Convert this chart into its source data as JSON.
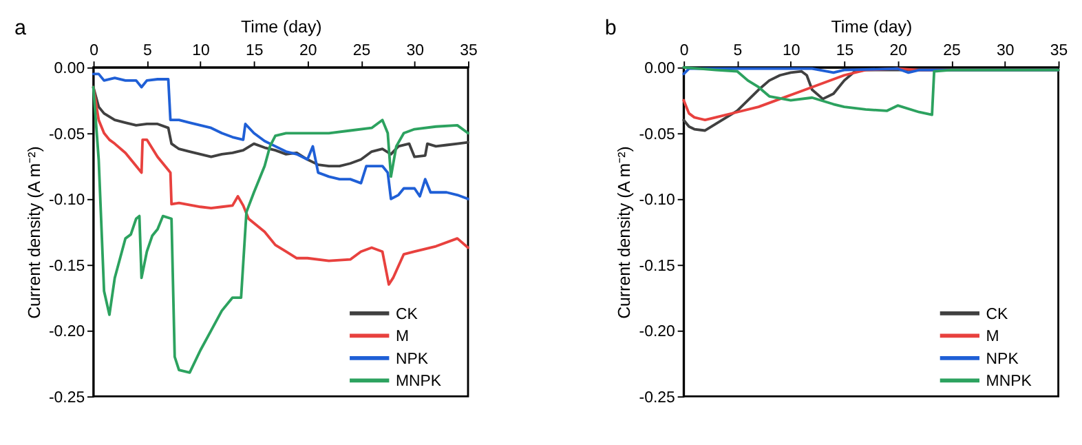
{
  "chart_data": [
    {
      "type": "line",
      "xlabel": "Time (day)",
      "ylabel": "Current density (A m⁻²)",
      "annotations": [
        "a"
      ],
      "xlim": [
        0,
        35
      ],
      "xticks": [
        0,
        5,
        10,
        15,
        20,
        25,
        30,
        35
      ],
      "ylim": [
        -0.25,
        0
      ],
      "yticks": [
        {
          "value": -0.25,
          "label": "-0.25"
        },
        {
          "value": -0.2,
          "label": "-0.20"
        },
        {
          "value": -0.15,
          "label": "-0.15"
        },
        {
          "value": -0.1,
          "label": "-0.10"
        },
        {
          "value": -0.05,
          "label": "-0.05"
        },
        {
          "value": 0,
          "label": "0.00"
        }
      ],
      "grid": false,
      "legend": "bottom right",
      "marker": "none",
      "line_style": "solid",
      "series": [
        {
          "name": "CK",
          "color": "#404040",
          "x": [
            0,
            0.5,
            1,
            2,
            3,
            4,
            5,
            6,
            7,
            7.3,
            8,
            9,
            10,
            11,
            12,
            13,
            14,
            15,
            16,
            17,
            18,
            19,
            20,
            21,
            22,
            23,
            24,
            25,
            26,
            27,
            27.8,
            28.5,
            29.5,
            30,
            31,
            31.2,
            32,
            33,
            34,
            35
          ],
          "values": [
            -0.015,
            -0.03,
            -0.035,
            -0.04,
            -0.042,
            -0.044,
            -0.043,
            -0.043,
            -0.046,
            -0.058,
            -0.062,
            -0.064,
            -0.066,
            -0.068,
            -0.066,
            -0.065,
            -0.063,
            -0.058,
            -0.061,
            -0.063,
            -0.066,
            -0.065,
            -0.07,
            -0.074,
            -0.075,
            -0.075,
            -0.073,
            -0.07,
            -0.064,
            -0.062,
            -0.066,
            -0.06,
            -0.058,
            -0.068,
            -0.067,
            -0.058,
            -0.06,
            -0.059,
            -0.058,
            -0.057
          ]
        },
        {
          "name": "M",
          "color": "#e8413e",
          "x": [
            0,
            0.5,
            1,
            1.5,
            2,
            3,
            4,
            4.5,
            4.6,
            5,
            6,
            7,
            7.2,
            7.3,
            8,
            10,
            11,
            12,
            13,
            13.5,
            14,
            14.5,
            16,
            17,
            18,
            19,
            20,
            22,
            24,
            25,
            26,
            27,
            27.6,
            28,
            29,
            30,
            32,
            34,
            35
          ],
          "values": [
            -0.015,
            -0.04,
            -0.05,
            -0.055,
            -0.058,
            -0.065,
            -0.075,
            -0.08,
            -0.055,
            -0.055,
            -0.068,
            -0.078,
            -0.08,
            -0.104,
            -0.103,
            -0.106,
            -0.107,
            -0.106,
            -0.105,
            -0.098,
            -0.105,
            -0.115,
            -0.125,
            -0.135,
            -0.14,
            -0.145,
            -0.145,
            -0.147,
            -0.146,
            -0.14,
            -0.137,
            -0.14,
            -0.165,
            -0.16,
            -0.142,
            -0.14,
            -0.136,
            -0.13,
            -0.137
          ]
        },
        {
          "name": "NPK",
          "color": "#1f5fd6",
          "x": [
            0,
            0.5,
            1,
            2,
            3,
            4,
            4.5,
            5,
            6,
            7,
            7.2,
            8,
            9,
            10,
            11,
            12,
            13,
            14,
            14.2,
            15,
            16,
            17,
            18,
            19,
            20,
            20.5,
            21,
            22,
            23,
            24,
            25,
            25.5,
            27,
            27.5,
            27.8,
            28.5,
            29,
            30,
            30.5,
            31,
            31.5,
            33,
            34,
            35
          ],
          "values": [
            -0.005,
            -0.005,
            -0.01,
            -0.008,
            -0.01,
            -0.01,
            -0.015,
            -0.01,
            -0.009,
            -0.009,
            -0.04,
            -0.04,
            -0.042,
            -0.044,
            -0.046,
            -0.05,
            -0.053,
            -0.055,
            -0.043,
            -0.05,
            -0.056,
            -0.06,
            -0.064,
            -0.066,
            -0.07,
            -0.06,
            -0.08,
            -0.083,
            -0.085,
            -0.085,
            -0.088,
            -0.075,
            -0.075,
            -0.08,
            -0.1,
            -0.097,
            -0.092,
            -0.092,
            -0.098,
            -0.085,
            -0.095,
            -0.095,
            -0.097,
            -0.1
          ]
        },
        {
          "name": "MNPK",
          "color": "#2ca25f",
          "x": [
            0,
            0.5,
            1,
            1.5,
            2,
            3,
            3.5,
            4,
            4.3,
            4.5,
            5,
            5.5,
            6,
            6.5,
            7.3,
            7.6,
            8,
            9,
            10,
            11,
            12,
            13,
            13.8,
            14.3,
            15,
            16,
            16.5,
            17,
            18,
            20,
            22,
            24,
            26,
            27,
            27.5,
            27.8,
            28.3,
            29,
            30,
            32,
            34,
            35
          ],
          "values": [
            -0.015,
            -0.07,
            -0.17,
            -0.188,
            -0.16,
            -0.13,
            -0.127,
            -0.115,
            -0.113,
            -0.16,
            -0.14,
            -0.128,
            -0.123,
            -0.113,
            -0.115,
            -0.22,
            -0.23,
            -0.232,
            -0.215,
            -0.2,
            -0.185,
            -0.175,
            -0.175,
            -0.11,
            -0.095,
            -0.075,
            -0.06,
            -0.052,
            -0.05,
            -0.05,
            -0.05,
            -0.048,
            -0.046,
            -0.04,
            -0.05,
            -0.083,
            -0.06,
            -0.05,
            -0.047,
            -0.045,
            -0.044,
            -0.05
          ]
        }
      ]
    },
    {
      "type": "line",
      "xlabel": "Time (day)",
      "ylabel": "Current density (A m⁻²)",
      "annotations": [
        "b"
      ],
      "xlim": [
        0,
        35
      ],
      "xticks": [
        0,
        5,
        10,
        15,
        20,
        25,
        30,
        35
      ],
      "ylim": [
        -0.25,
        0
      ],
      "yticks": [
        {
          "value": -0.25,
          "label": "-0.25"
        },
        {
          "value": -0.2,
          "label": "-0.20"
        },
        {
          "value": -0.15,
          "label": "-0.15"
        },
        {
          "value": -0.1,
          "label": "-0.10"
        },
        {
          "value": -0.05,
          "label": "-0.05"
        },
        {
          "value": 0,
          "label": "0.00"
        }
      ],
      "grid": false,
      "legend": "bottom right",
      "marker": "none",
      "line_style": "solid",
      "series": [
        {
          "name": "CK",
          "color": "#404040",
          "x": [
            0,
            0.5,
            1,
            2,
            3,
            4,
            5,
            6,
            7,
            8,
            9,
            10,
            11,
            11.5,
            12,
            13,
            14,
            15,
            16,
            17,
            20,
            25,
            35
          ],
          "values": [
            -0.04,
            -0.045,
            -0.047,
            -0.048,
            -0.043,
            -0.038,
            -0.033,
            -0.025,
            -0.017,
            -0.01,
            -0.006,
            -0.004,
            -0.003,
            -0.006,
            -0.017,
            -0.024,
            -0.02,
            -0.01,
            -0.003,
            -0.002,
            -0.002,
            -0.002,
            -0.002
          ]
        },
        {
          "name": "M",
          "color": "#e8413e",
          "x": [
            0,
            0.5,
            1,
            2,
            3,
            5,
            7,
            9,
            11,
            13,
            15,
            17,
            20,
            22,
            25,
            35
          ],
          "values": [
            -0.025,
            -0.035,
            -0.038,
            -0.04,
            -0.038,
            -0.034,
            -0.03,
            -0.024,
            -0.018,
            -0.012,
            -0.006,
            -0.002,
            -0.001,
            -0.002,
            -0.002,
            -0.002
          ]
        },
        {
          "name": "NPK",
          "color": "#1f5fd6",
          "x": [
            0,
            0.5,
            5,
            12,
            14,
            15,
            20,
            21,
            22,
            25,
            35
          ],
          "values": [
            -0.005,
            -0.001,
            -0.001,
            -0.001,
            -0.004,
            -0.002,
            -0.001,
            -0.004,
            -0.002,
            -0.002,
            -0.002
          ]
        },
        {
          "name": "MNPK",
          "color": "#2ca25f",
          "x": [
            0,
            3,
            5,
            6,
            7,
            8,
            10,
            12,
            14,
            15,
            17,
            19,
            20,
            22,
            23.2,
            23.4,
            25,
            30,
            35
          ],
          "values": [
            0,
            -0.002,
            -0.003,
            -0.01,
            -0.015,
            -0.022,
            -0.025,
            -0.023,
            -0.028,
            -0.03,
            -0.032,
            -0.033,
            -0.029,
            -0.034,
            -0.036,
            -0.003,
            -0.002,
            -0.002,
            -0.002
          ]
        }
      ]
    }
  ]
}
